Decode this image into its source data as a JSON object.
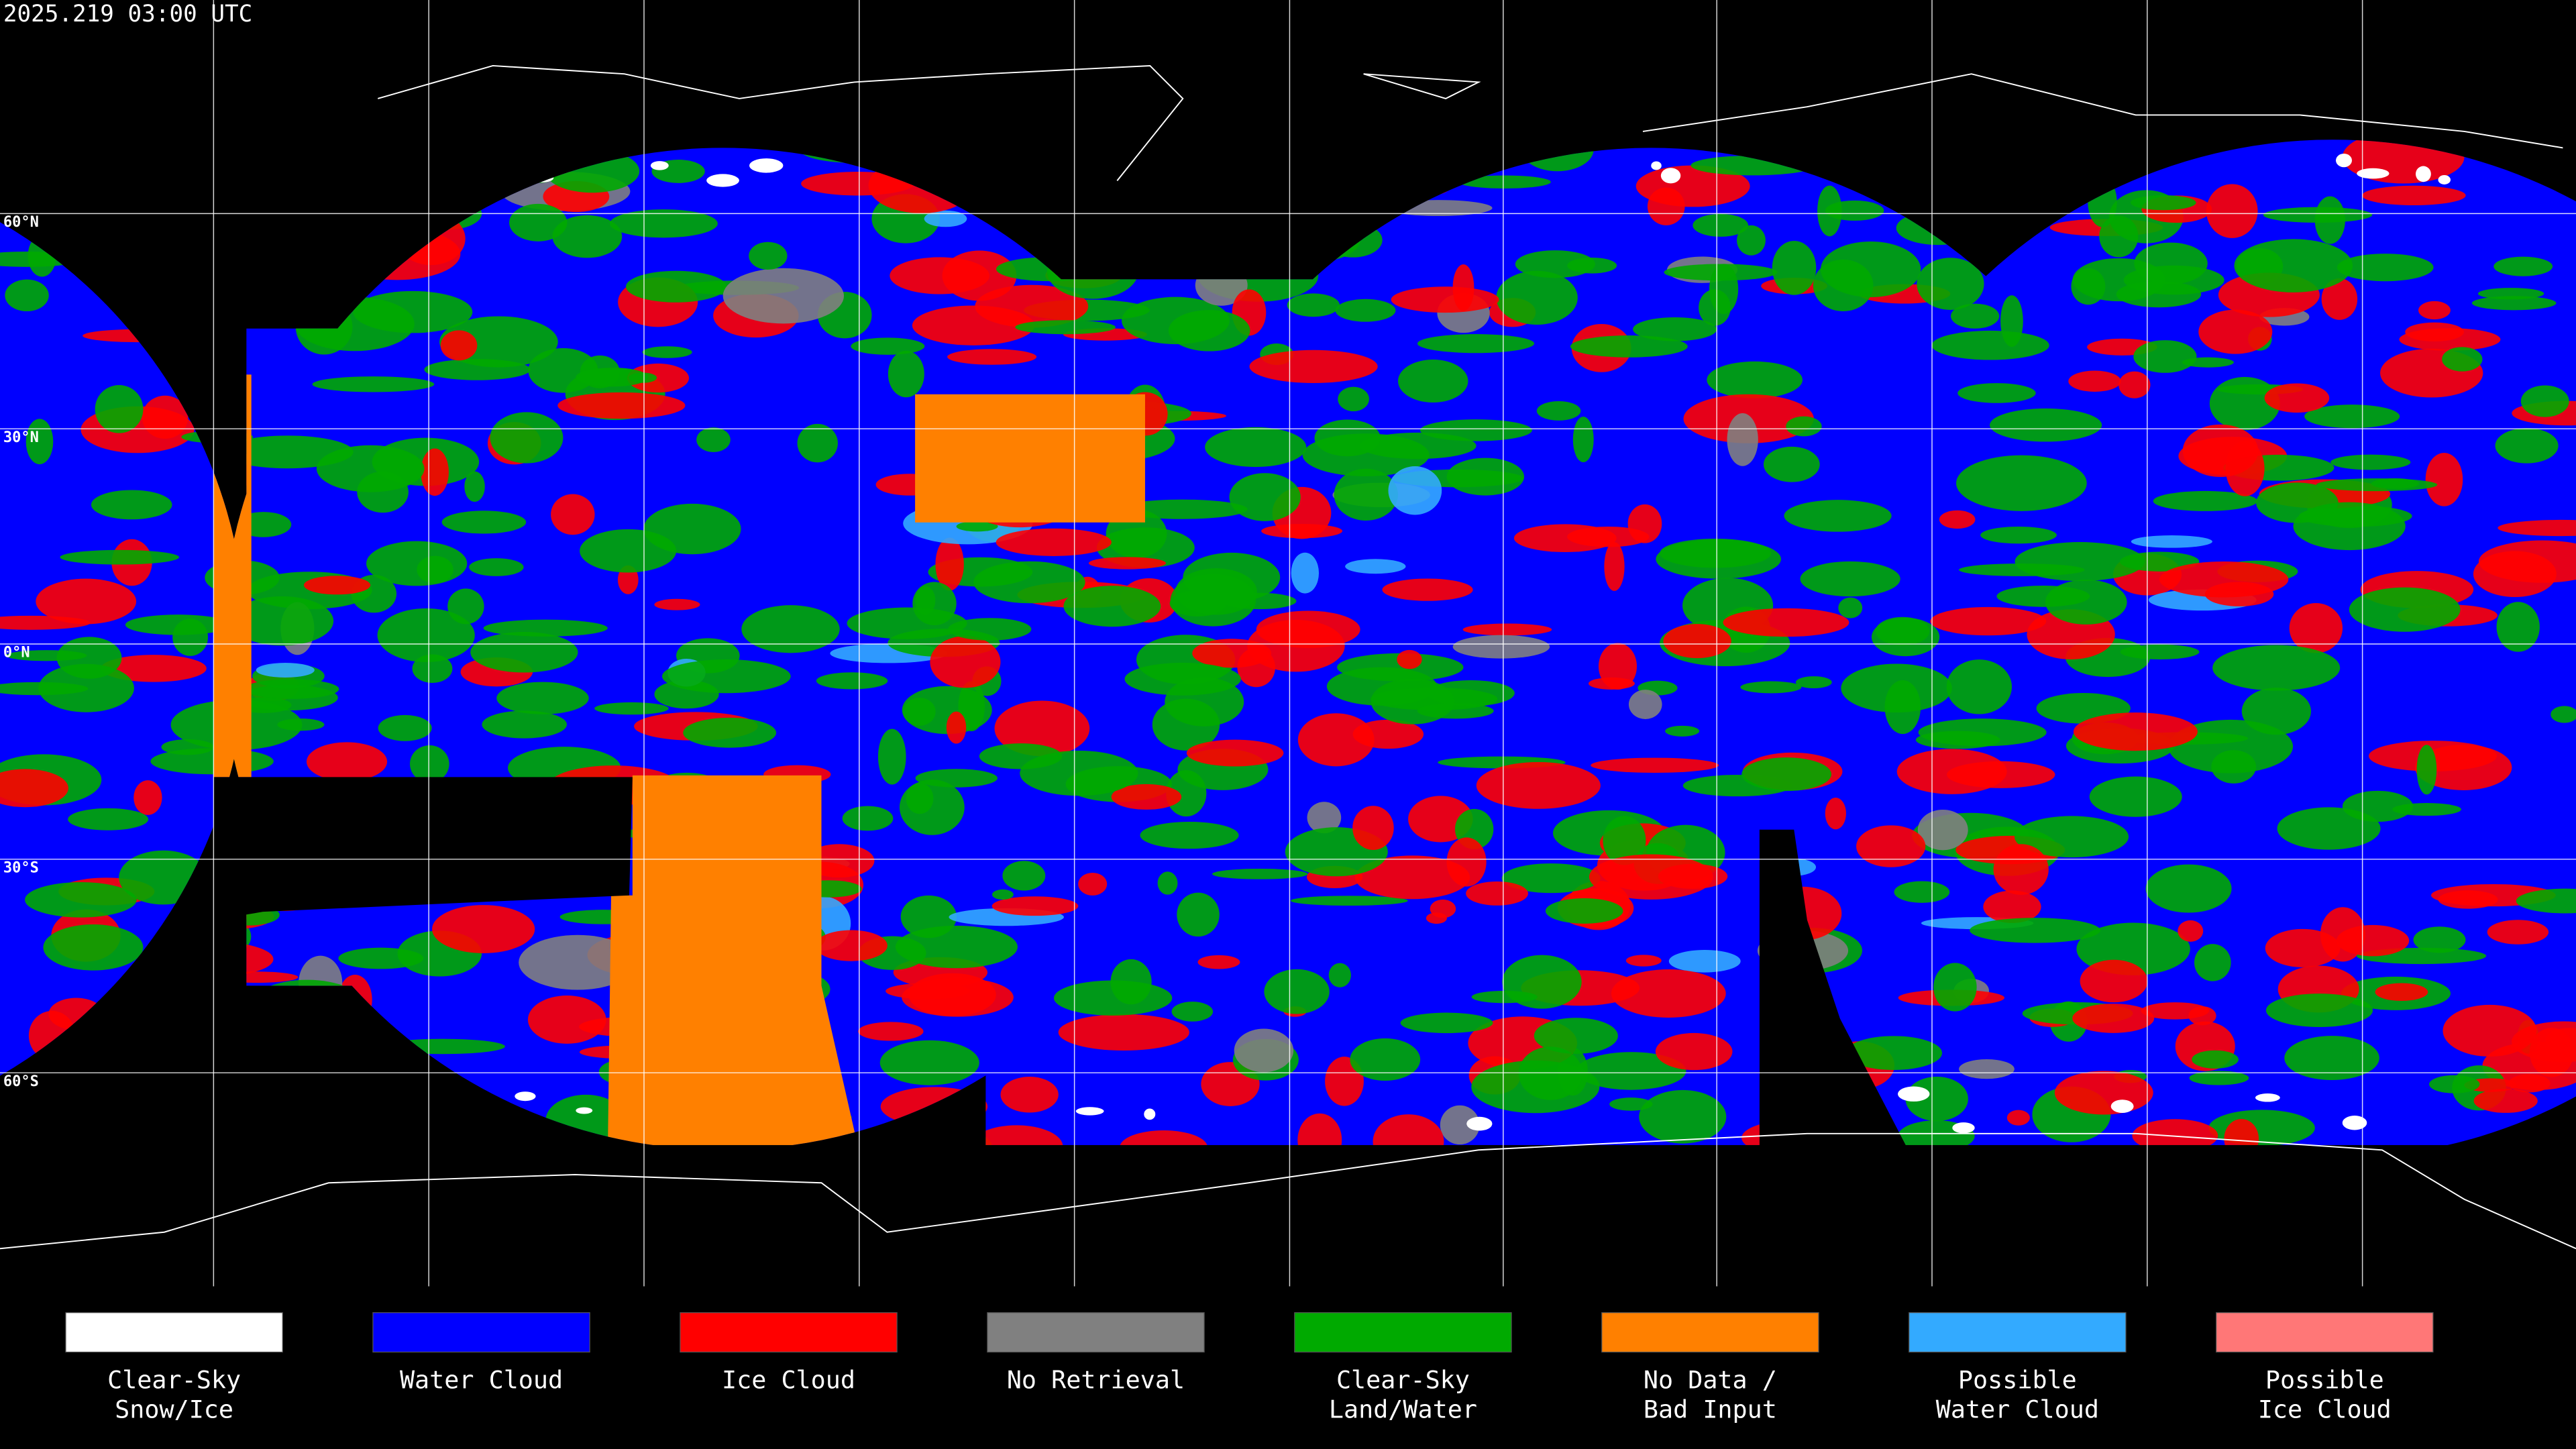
{
  "header": {
    "timestamp": "2025.219 03:00 UTC"
  },
  "map": {
    "latitude_labels": [
      "60°N",
      "30°N",
      "0°N",
      "30°S",
      "60°S"
    ]
  },
  "legend": [
    {
      "lines": [
        "Clear-Sky",
        "Snow/Ice"
      ],
      "color": "#ffffff"
    },
    {
      "lines": [
        "Water Cloud"
      ],
      "color": "#0000ff"
    },
    {
      "lines": [
        "Ice Cloud"
      ],
      "color": "#ff0000"
    },
    {
      "lines": [
        "No Retrieval"
      ],
      "color": "#808080"
    },
    {
      "lines": [
        "Clear-Sky",
        "Land/Water"
      ],
      "color": "#00aa00"
    },
    {
      "lines": [
        "No Data /",
        "Bad Input"
      ],
      "color": "#ff8000"
    },
    {
      "lines": [
        "Possible",
        "Water Cloud"
      ],
      "color": "#33aaff"
    },
    {
      "lines": [
        "Possible",
        "Ice Cloud"
      ],
      "color": "#ff7777"
    }
  ]
}
